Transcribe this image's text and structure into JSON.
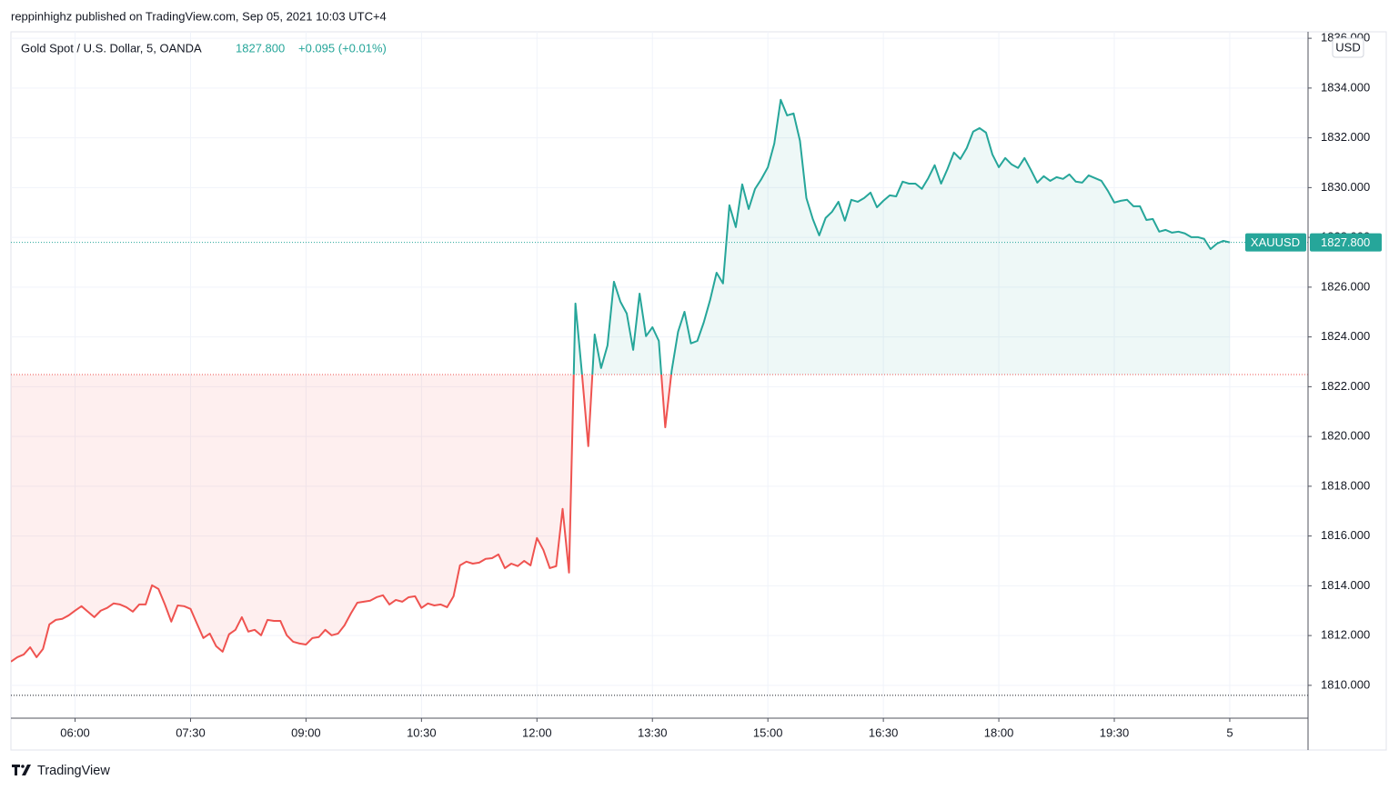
{
  "header": {
    "publisher": "reppinhighz published on TradingView.com, Sep 05, 2021 10:03 UTC+4",
    "brand": "TradingView"
  },
  "chart_data": {
    "type": "line",
    "title": "Gold Spot / U.S. Dollar, 5, OANDA",
    "last_label": "1827.800",
    "change": "+0.095 (+0.01%)",
    "currency": "USD",
    "x": [
      310,
      315,
      320,
      325,
      330,
      335,
      340,
      345,
      350,
      355,
      360,
      365,
      370,
      375,
      380,
      385,
      390,
      395,
      400,
      405,
      410,
      415,
      420,
      425,
      430,
      435,
      440,
      445,
      450,
      455,
      460,
      465,
      470,
      475,
      480,
      485,
      490,
      495,
      500,
      505,
      510,
      515,
      520,
      525,
      530,
      535,
      540,
      545,
      550,
      555,
      560,
      565,
      570,
      575,
      580,
      585,
      590,
      595,
      600,
      605,
      610,
      615,
      620,
      625,
      630,
      635,
      640,
      645,
      650,
      655,
      660,
      665,
      670,
      675,
      680,
      685,
      690,
      695,
      700,
      705,
      710,
      715,
      720,
      725,
      730,
      735,
      740,
      745,
      750,
      755,
      760,
      765,
      770,
      775,
      780,
      785,
      790,
      795,
      800,
      805,
      810,
      815,
      820,
      825,
      830,
      835,
      840,
      845,
      850,
      855,
      860,
      865,
      870,
      875,
      880,
      885,
      890,
      895,
      900,
      905,
      910,
      915,
      920,
      925,
      930,
      935,
      940,
      945,
      950,
      955,
      960,
      965,
      970,
      975,
      980,
      985,
      990,
      995,
      1000,
      1005,
      1010,
      1015,
      1020,
      1025,
      1030,
      1035,
      1040,
      1045,
      1050,
      1055,
      1060,
      1065,
      1070,
      1075,
      1080,
      1085,
      1090,
      1095,
      1100,
      1105,
      1110,
      1115,
      1120,
      1125,
      1130,
      1135,
      1140,
      1145,
      1150,
      1155,
      1160,
      1165,
      1170,
      1175,
      1180,
      1185,
      1190,
      1195,
      1200,
      1205,
      1210,
      1215,
      1220,
      1225,
      1230,
      1235,
      1240,
      1245,
      1250,
      1255,
      1260
    ],
    "series": [
      {
        "name": "XAUUSD",
        "color": "#26a69a",
        "values": [
          1810.95,
          1811.13,
          1811.24,
          1811.53,
          1811.13,
          1811.46,
          1812.45,
          1812.63,
          1812.67,
          1812.81,
          1813.0,
          1813.18,
          1812.96,
          1812.74,
          1813.0,
          1813.11,
          1813.29,
          1813.25,
          1813.14,
          1812.96,
          1813.25,
          1813.25,
          1814.02,
          1813.87,
          1813.25,
          1812.56,
          1813.21,
          1813.18,
          1813.07,
          1812.48,
          1811.9,
          1812.08,
          1811.57,
          1811.35,
          1812.05,
          1812.23,
          1812.74,
          1812.16,
          1812.23,
          1812.01,
          1812.63,
          1812.59,
          1812.59,
          1812.01,
          1811.75,
          1811.68,
          1811.64,
          1811.9,
          1811.94,
          1812.23,
          1812.01,
          1812.08,
          1812.41,
          1812.89,
          1813.32,
          1813.36,
          1813.4,
          1813.54,
          1813.62,
          1813.25,
          1813.43,
          1813.36,
          1813.54,
          1813.58,
          1813.11,
          1813.29,
          1813.21,
          1813.25,
          1813.14,
          1813.58,
          1814.82,
          1814.97,
          1814.89,
          1814.93,
          1815.08,
          1815.11,
          1815.26,
          1814.71,
          1814.89,
          1814.79,
          1815.0,
          1814.82,
          1815.92,
          1815.44,
          1814.71,
          1814.79,
          1817.09,
          1814.53,
          1825.34,
          1822.57,
          1819.61,
          1824.1,
          1822.75,
          1823.66,
          1826.22,
          1825.42,
          1824.94,
          1823.48,
          1825.74,
          1824.03,
          1824.39,
          1823.84,
          1820.37,
          1822.64,
          1824.21,
          1825.01,
          1823.74,
          1823.84,
          1824.58,
          1825.49,
          1826.58,
          1826.15,
          1829.29,
          1828.41,
          1830.13,
          1829.14,
          1829.95,
          1830.35,
          1830.82,
          1831.77,
          1833.53,
          1832.9,
          1832.98,
          1831.88,
          1829.58,
          1828.74,
          1828.08,
          1828.78,
          1829.03,
          1829.43,
          1828.67,
          1829.51,
          1829.43,
          1829.58,
          1829.8,
          1829.21,
          1829.47,
          1829.69,
          1829.65,
          1830.24,
          1830.16,
          1830.16,
          1829.95,
          1830.38,
          1830.9,
          1830.16,
          1830.75,
          1831.41,
          1831.15,
          1831.59,
          1832.25,
          1832.39,
          1832.21,
          1831.33,
          1830.82,
          1831.19,
          1830.93,
          1830.79,
          1831.19,
          1830.71,
          1830.2,
          1830.46,
          1830.27,
          1830.42,
          1830.35,
          1830.53,
          1830.24,
          1830.2,
          1830.49,
          1830.38,
          1830.27,
          1829.87,
          1829.4,
          1829.47,
          1829.51,
          1829.25,
          1829.25,
          1828.7,
          1828.74,
          1828.23,
          1828.3,
          1828.19,
          1828.23,
          1828.16,
          1828.01,
          1828.01,
          1827.94,
          1827.53,
          1827.75,
          1827.86,
          1827.8
        ]
      }
    ],
    "down_color": "#ef5350",
    "baseline": 1822.49,
    "lower_line": 1809.6,
    "xlim": [
      310,
      1321
    ],
    "xticks": [
      {
        "value": 360,
        "label": "06:00"
      },
      {
        "value": 450,
        "label": "07:30"
      },
      {
        "value": 540,
        "label": "09:00"
      },
      {
        "value": 630,
        "label": "10:30"
      },
      {
        "value": 720,
        "label": "12:00"
      },
      {
        "value": 810,
        "label": "13:30"
      },
      {
        "value": 900,
        "label": "15:00"
      },
      {
        "value": 990,
        "label": "16:30"
      },
      {
        "value": 1080,
        "label": "18:00"
      },
      {
        "value": 1170,
        "label": "19:30"
      },
      {
        "value": 1260,
        "label": "5"
      }
    ],
    "ylim": [
      1808.68,
      1836.26
    ],
    "yticks": [
      {
        "value": 1810,
        "label": "1810.000"
      },
      {
        "value": 1812,
        "label": "1812.000"
      },
      {
        "value": 1814,
        "label": "1814.000"
      },
      {
        "value": 1816,
        "label": "1816.000"
      },
      {
        "value": 1818,
        "label": "1818.000"
      },
      {
        "value": 1820,
        "label": "1820.000"
      },
      {
        "value": 1822,
        "label": "1822.000"
      },
      {
        "value": 1824,
        "label": "1824.000"
      },
      {
        "value": 1826,
        "label": "1826.000"
      },
      {
        "value": 1828,
        "label": "1828.000"
      },
      {
        "value": 1830,
        "label": "1830.000"
      },
      {
        "value": 1832,
        "label": "1832.000"
      },
      {
        "value": 1834,
        "label": "1834.000"
      },
      {
        "value": 1836,
        "label": "1836.000"
      }
    ],
    "grid": true
  }
}
